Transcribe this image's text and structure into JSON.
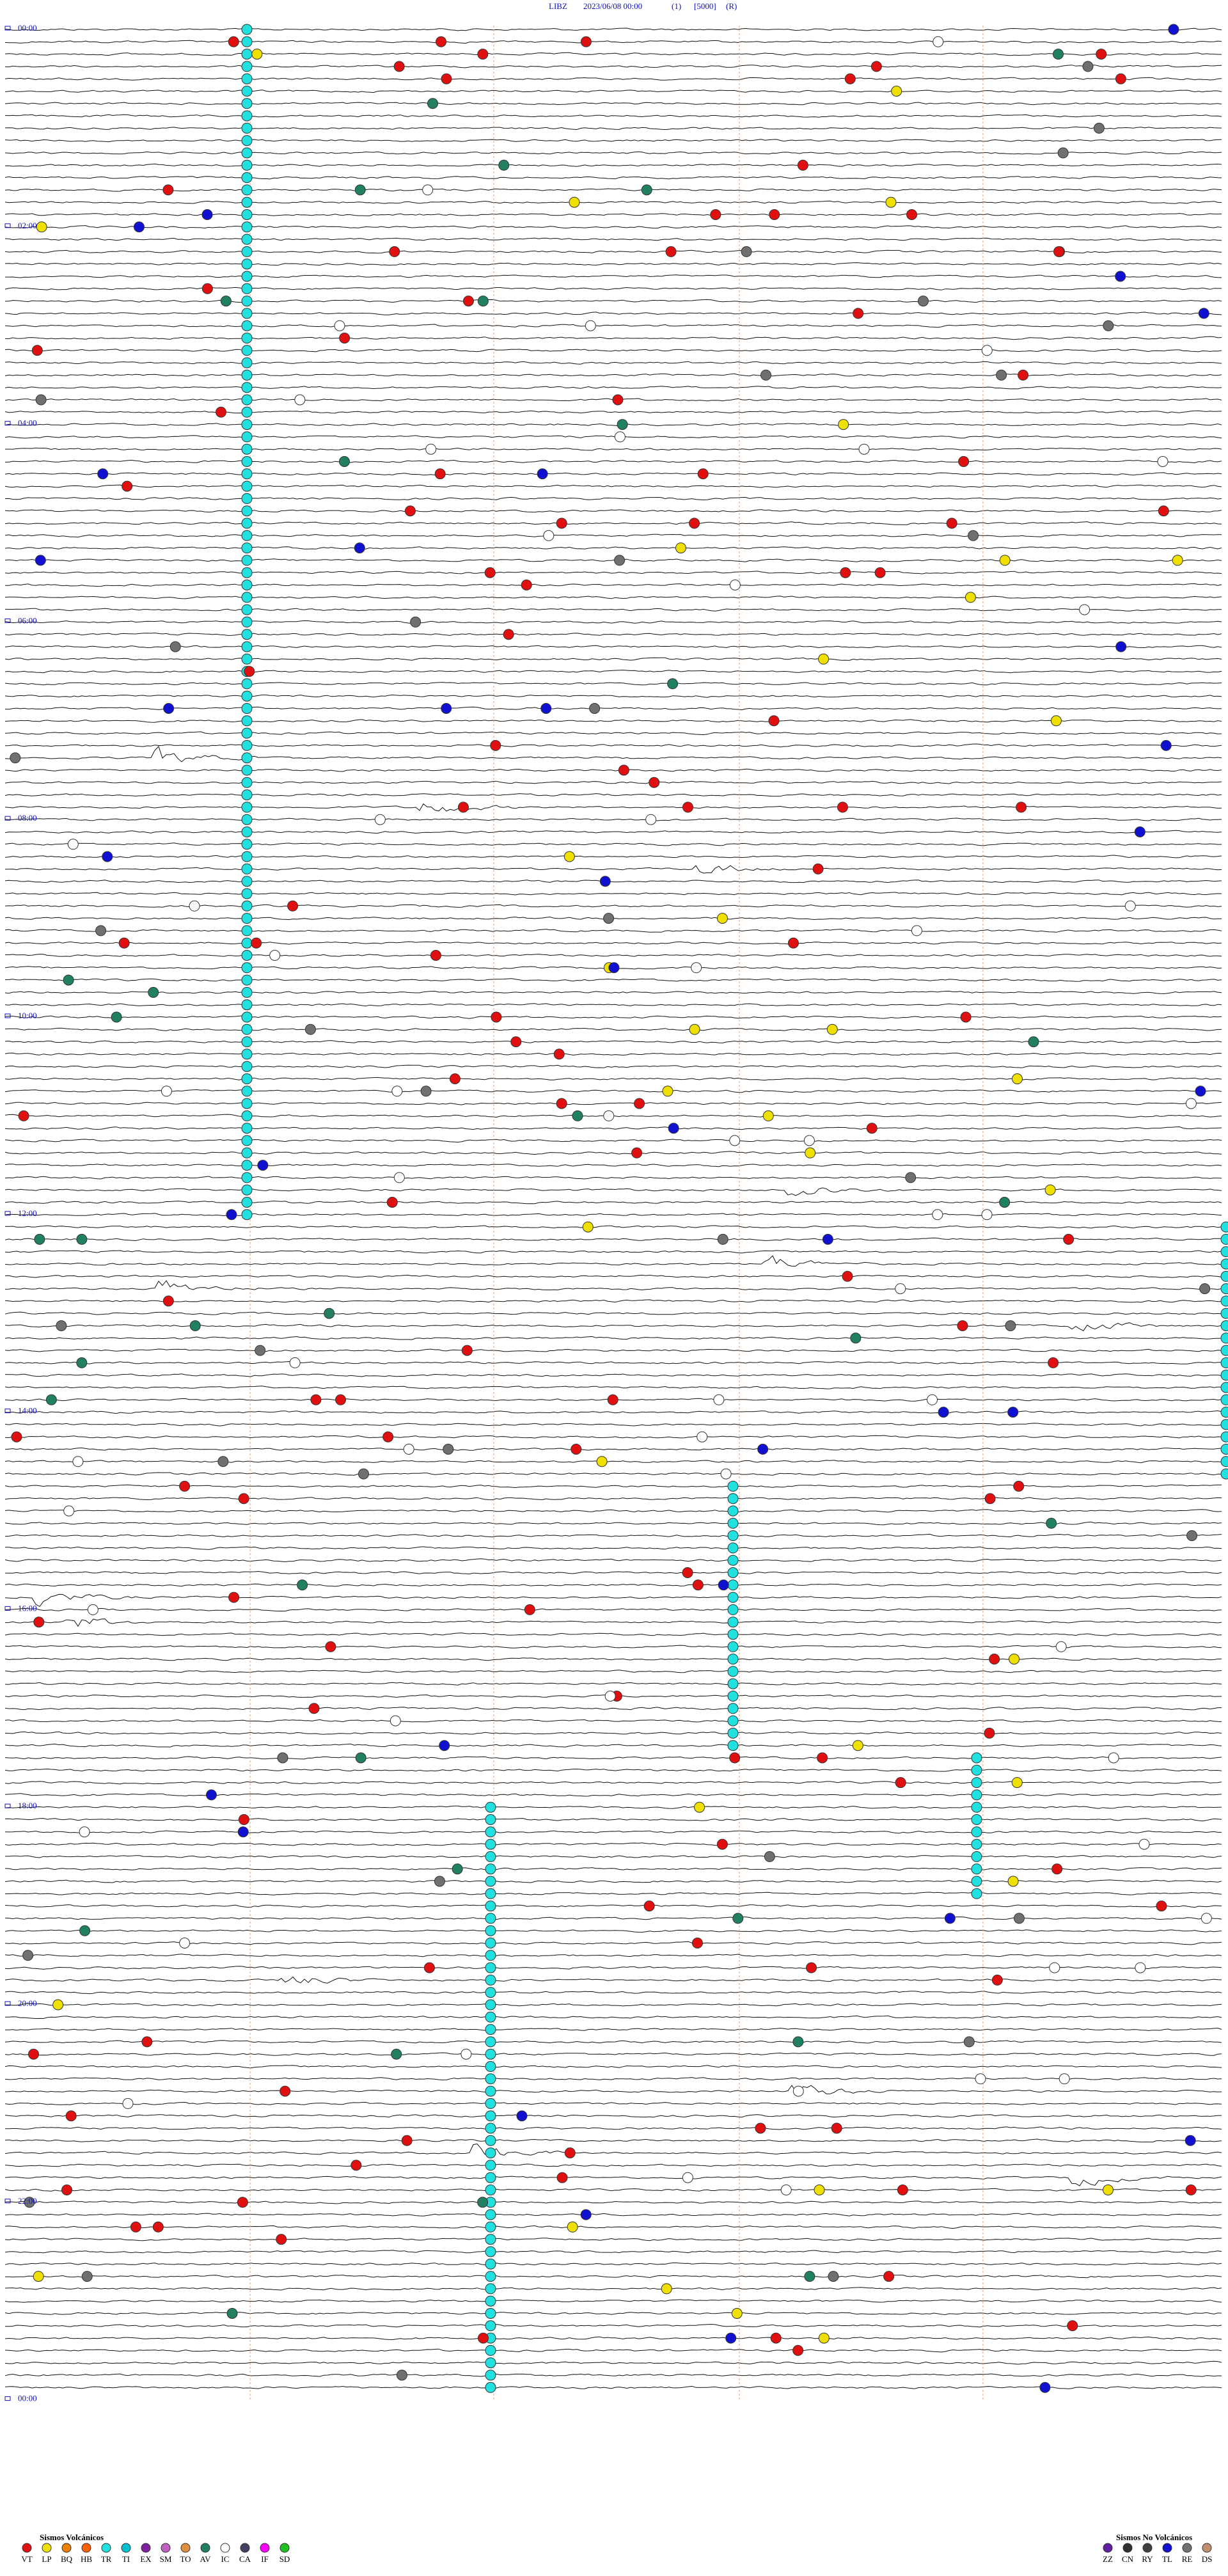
{
  "header": {
    "station": "LIBZ",
    "datetime": "2023/06/08 00:00",
    "channel": "(1)",
    "scale": "[5000]",
    "mode": "(R)"
  },
  "time_labels": [
    "00:00",
    "02:00",
    "04:00",
    "06:00",
    "08:00",
    "10:00",
    "12:00",
    "14:00",
    "16:00",
    "18:00",
    "20:00",
    "22:00",
    "00:00"
  ],
  "legend": {
    "volcanic": {
      "title": "Sismos Volcánicos",
      "items": [
        {
          "code": "VT",
          "color": "#e01010"
        },
        {
          "code": "LP",
          "color": "#f0e000"
        },
        {
          "code": "BQ",
          "color": "#f08000"
        },
        {
          "code": "HB",
          "color": "#ff6000"
        },
        {
          "code": "TR",
          "color": "#20e0e0"
        },
        {
          "code": "TI",
          "color": "#00c0d0"
        },
        {
          "code": "EX",
          "color": "#8020a0"
        },
        {
          "code": "SM",
          "color": "#c060c0"
        },
        {
          "code": "TO",
          "color": "#e09040"
        },
        {
          "code": "AV",
          "color": "#208060"
        },
        {
          "code": "IC",
          "color": "#ffffff"
        },
        {
          "code": "CA",
          "color": "#404060"
        },
        {
          "code": "IF",
          "color": "#ff00ff"
        },
        {
          "code": "SD",
          "color": "#20c020"
        }
      ]
    },
    "non_volcanic": {
      "title": "Sismos No Volcánicos",
      "items": [
        {
          "code": "ZZ",
          "color": "#6020a0"
        },
        {
          "code": "CN",
          "color": "#303030"
        },
        {
          "code": "RY",
          "color": "#404040"
        },
        {
          "code": "TL",
          "color": "#1010d0"
        },
        {
          "code": "RE",
          "color": "#707070"
        },
        {
          "code": "DS",
          "color": "#c09070"
        }
      ]
    }
  }
}
